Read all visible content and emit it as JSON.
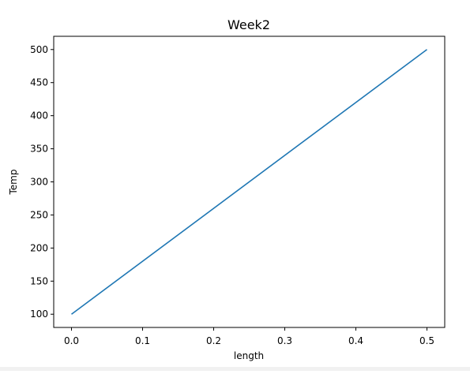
{
  "chart_data": {
    "type": "line",
    "title": "Week2",
    "xlabel": "length",
    "ylabel": "Temp",
    "x": [
      0.0,
      0.5
    ],
    "series": [
      {
        "values": [
          100,
          500
        ],
        "color": "#1f77b4"
      }
    ],
    "xlim": [
      -0.025,
      0.525
    ],
    "ylim": [
      80,
      520
    ],
    "xticks": [
      0.0,
      0.1,
      0.2,
      0.3,
      0.4,
      0.5
    ],
    "xtick_labels": [
      "0.0",
      "0.1",
      "0.2",
      "0.3",
      "0.4",
      "0.5"
    ],
    "yticks": [
      100,
      150,
      200,
      250,
      300,
      350,
      400,
      450,
      500
    ],
    "ytick_labels": [
      "100",
      "150",
      "200",
      "250",
      "300",
      "350",
      "400",
      "450",
      "500"
    ],
    "grid": false,
    "legend": false
  }
}
